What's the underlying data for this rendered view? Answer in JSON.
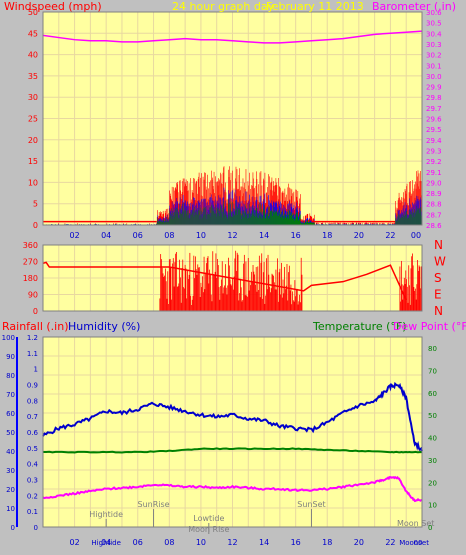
{
  "chart_data": [
    {
      "type": "line",
      "labels": {
        "left": "Windspeed (mph)",
        "center": "24 hour graph day",
        "date": "February 11 2013",
        "right": "Barometer (.in)"
      },
      "x_ticks": [
        "02",
        "04",
        "06",
        "08",
        "10",
        "12",
        "14",
        "16",
        "18",
        "20",
        "22",
        "00"
      ],
      "y_left": {
        "min": 0,
        "max": 50,
        "ticks": [
          0,
          5,
          10,
          15,
          20,
          25,
          30,
          35,
          40,
          45,
          50
        ]
      },
      "y_right": {
        "min": 28.6,
        "max": 30.6,
        "ticks": [
          "28.6",
          "28.7",
          "28.8",
          "28.9",
          "29.0",
          "29.1",
          "29.2",
          "29.3",
          "29.4",
          "29.5",
          "29.6",
          "29.7",
          "29.8",
          "29.9",
          "30.0",
          "30.1",
          "30.2",
          "30.3",
          "30.4",
          "30.5",
          "30.6"
        ]
      },
      "series": [
        {
          "label": "Barometer",
          "color": "#ff00ff",
          "x": [
            0,
            1,
            2,
            3,
            4,
            5,
            6,
            7,
            8,
            9,
            10,
            11,
            12,
            13,
            14,
            15,
            16,
            17,
            18,
            19,
            20,
            21,
            22,
            23,
            24
          ],
          "y": [
            30.38,
            30.36,
            30.34,
            30.33,
            30.33,
            30.32,
            30.32,
            30.33,
            30.34,
            30.35,
            30.34,
            30.34,
            30.33,
            30.32,
            30.31,
            30.31,
            30.32,
            30.33,
            30.34,
            30.35,
            30.37,
            30.39,
            30.4,
            30.41,
            30.42
          ]
        },
        {
          "label": "Wind gust",
          "color": "#ff0000"
        },
        {
          "label": "Wind speed",
          "color": "#0000ff"
        },
        {
          "label": "Wind average",
          "color": "#008000"
        }
      ]
    },
    {
      "type": "line",
      "y_ticks": [
        0,
        90,
        180,
        270,
        360
      ],
      "compass": [
        "N",
        "W",
        "S",
        "E",
        "N"
      ],
      "series": [
        {
          "label": "Wind direction",
          "color": "#ff0000",
          "x": [
            0,
            0.2,
            0.4,
            7.2,
            8.0,
            16.5,
            17.0,
            19.0,
            20.5,
            22.0,
            23.0
          ],
          "y": [
            260,
            265,
            240,
            240,
            240,
            110,
            140,
            160,
            200,
            250,
            60
          ]
        }
      ]
    },
    {
      "type": "line",
      "labels": {
        "rain": "Rainfall (.in)",
        "humidity": "Humidity (%)",
        "temperature": "Temperature (°F)",
        "dewpoint": "Dew Point (°F)"
      },
      "y_humidity": {
        "min": 0,
        "max": 100,
        "ticks": [
          0,
          10,
          20,
          30,
          40,
          50,
          60,
          70,
          80,
          90,
          100
        ]
      },
      "y_rain": {
        "min": 0,
        "max": 1.2,
        "ticks": [
          "0",
          "0.1",
          "0.2",
          "0.3",
          "0.4",
          "0.5",
          "0.6",
          "0.7",
          "0.8",
          "0.9",
          "1",
          "1.1",
          "1.2"
        ]
      },
      "y_temp": {
        "min": 0,
        "max": 85,
        "ticks": [
          0,
          10,
          20,
          30,
          40,
          50,
          60,
          70,
          80
        ]
      },
      "annotations": [
        "Hightide",
        "SunRise",
        "Lowtide",
        "Moon Rise",
        "SunSet",
        "Moon Set"
      ],
      "x_tick_extra": [
        "Hightide",
        "Moonset"
      ],
      "series": [
        {
          "label": "Humidity",
          "color": "#0000cc",
          "x": [
            0,
            1,
            2,
            3,
            4,
            5,
            6,
            7,
            8,
            9,
            10,
            11,
            12,
            13,
            14,
            15,
            16,
            17,
            18,
            19,
            20,
            21,
            21.5,
            22,
            22.5,
            23,
            23.5,
            24
          ],
          "y": [
            48,
            52,
            54,
            57,
            61,
            60,
            62,
            65,
            63,
            61,
            59,
            58,
            59,
            57,
            56,
            53,
            52,
            51,
            55,
            60,
            64,
            66,
            70,
            74,
            75,
            68,
            45,
            40
          ]
        },
        {
          "label": "Temperature",
          "color": "#008000",
          "x": [
            0,
            2,
            4,
            6,
            8,
            10,
            12,
            14,
            16,
            18,
            20,
            22,
            23,
            24
          ],
          "y": [
            33.5,
            33.5,
            33.5,
            33.5,
            34,
            35,
            35,
            35,
            35,
            34.5,
            34,
            33.5,
            33.5,
            33.5
          ]
        },
        {
          "label": "Dew Point",
          "color": "#ff00ff",
          "x": [
            0,
            1,
            2,
            3,
            4,
            5,
            6,
            7,
            8,
            9,
            10,
            11,
            12,
            13,
            14,
            15,
            16,
            17,
            18,
            19,
            20,
            21,
            21.5,
            22,
            22.5,
            23,
            23.5,
            24
          ],
          "y": [
            13,
            14,
            15,
            16,
            17,
            17.5,
            18,
            19,
            18.5,
            18,
            18,
            17.5,
            18,
            17.5,
            17,
            17,
            16.5,
            16.5,
            17,
            18,
            19,
            20,
            21,
            22,
            22,
            16,
            12,
            12
          ]
        }
      ]
    }
  ],
  "colors": {
    "background": "#c0c0c0",
    "plot": "#ffffa0",
    "grid": "#e8d8a0",
    "title_yellow": "#ffff00",
    "wind_label": "#ff0000",
    "baro_label": "#ff00ff"
  }
}
